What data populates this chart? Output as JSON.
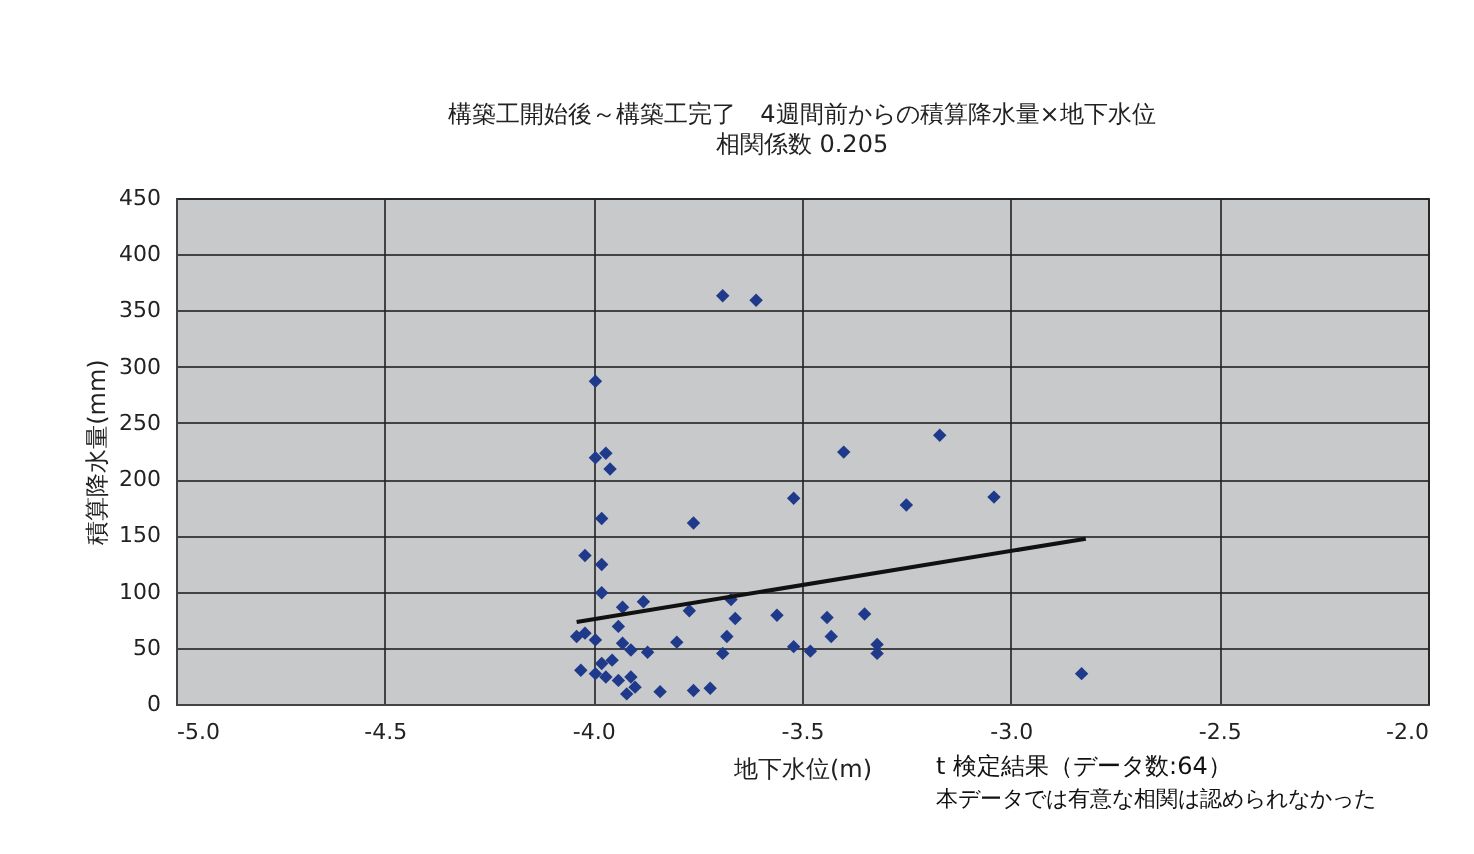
{
  "chart_data": {
    "type": "scatter",
    "title": "構築工開始後～構築工完了　4週間前からの積算降水量×地下水位",
    "subtitle": "相関係数  0.205",
    "xlabel": "地下水位(m)",
    "ylabel": "積算降水量(mm)",
    "annotations": [
      "t 検定結果（データ数:64）",
      "本データでは有意な相関は認められなかった"
    ],
    "xlim": [
      -5.0,
      -2.0
    ],
    "xticks": [
      {
        "value": -5.0,
        "label": "-5.0"
      },
      {
        "value": -4.5,
        "label": "-4.5"
      },
      {
        "value": -4.0,
        "label": "-4.0"
      },
      {
        "value": -3.5,
        "label": "-3.5"
      },
      {
        "value": -3.0,
        "label": "-3.0"
      },
      {
        "value": -2.5,
        "label": "-2.5"
      },
      {
        "value": -2.0,
        "label": "-2.0"
      }
    ],
    "ylim": [
      0,
      450
    ],
    "yticks": [
      0,
      50,
      100,
      150,
      200,
      250,
      300,
      350,
      400,
      450
    ],
    "grid": true,
    "marker": "diamond",
    "series": [
      {
        "color": "#1f3a8a",
        "x": [
          -3.69,
          -3.61,
          -3.995,
          -3.995,
          -3.97,
          -3.96,
          -3.4,
          -3.17,
          -3.52,
          -3.25,
          -3.04,
          -3.98,
          -3.76,
          -4.02,
          -3.98,
          -3.98,
          -3.93,
          -3.88,
          -3.77,
          -3.67,
          -3.66,
          -3.56,
          -3.44,
          -3.35,
          -3.43,
          -3.68,
          -3.8,
          -3.52,
          -3.48,
          -3.32,
          -3.32,
          -3.69,
          -2.83,
          -4.04,
          -4.02,
          -3.995,
          -3.94,
          -3.93,
          -3.91,
          -3.87,
          -4.03,
          -3.995,
          -3.97,
          -3.94,
          -3.91,
          -3.9,
          -3.92,
          -3.84,
          -3.76,
          -3.72,
          -3.98,
          -3.955
        ],
        "values": [
          363,
          359,
          287,
          219,
          223,
          209,
          224,
          239,
          183,
          177,
          184,
          165,
          161,
          132,
          124,
          99,
          86,
          91,
          83,
          93,
          76,
          79,
          77,
          80,
          60,
          60,
          55,
          51,
          47,
          53,
          45,
          45,
          27,
          60,
          63,
          57,
          69,
          54,
          48,
          46,
          30,
          27,
          24,
          21,
          24,
          15,
          9,
          11,
          12,
          14,
          36,
          39
        ]
      },
      {
        "type": "line",
        "color": "#111111",
        "marker": "none",
        "x": [
          -4.04,
          -2.82
        ],
        "values": [
          73,
          147
        ]
      }
    ]
  }
}
